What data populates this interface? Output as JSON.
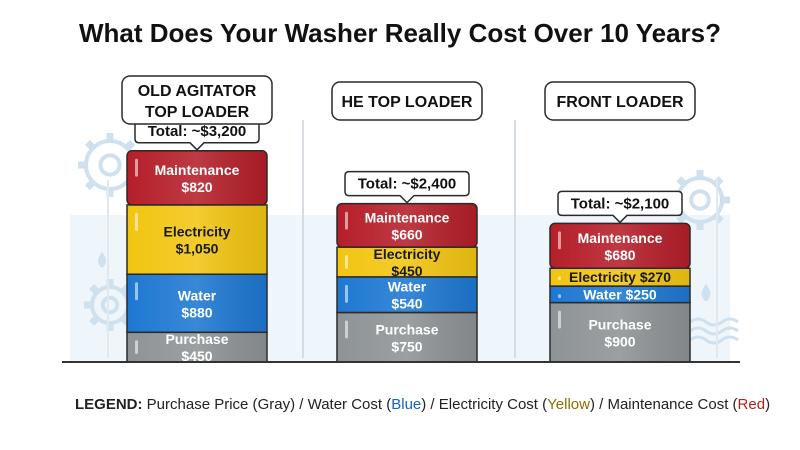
{
  "title": "What Does Your Washer Really Cost Over 10 Years?",
  "legend": {
    "label": "LEGEND:",
    "entries": [
      {
        "text": "Purchase Price (Gray)",
        "name": "Purchase Price",
        "paren": "Gray",
        "color": "#8e9396"
      },
      {
        "text": "Water Cost (Blue)",
        "name": "Water Cost",
        "paren": "Blue",
        "color": "#1e78d2"
      },
      {
        "text": "Electricity Cost (Yellow)",
        "name": "Electricity Cost",
        "paren": "Yellow",
        "color": "#f2c512"
      },
      {
        "text": "Maintenance Cost (Red)",
        "name": "Maintenance Cost",
        "paren": "Red",
        "color": "#b51f2a"
      }
    ],
    "separator": " / "
  },
  "chart_data": {
    "type": "bar",
    "stacked": true,
    "title": "What Does Your Washer Really Cost Over 10 Years?",
    "categories": [
      "OLD AGITATOR TOP LOADER",
      "HE TOP LOADER",
      "FRONT LOADER"
    ],
    "category_lines": [
      [
        "OLD AGITATOR",
        "TOP LOADER"
      ],
      [
        "HE TOP LOADER"
      ],
      [
        "FRONT LOADER"
      ]
    ],
    "totals": [
      "Total: ~$3,200",
      "Total: ~$2,400",
      "Total: ~$2,100"
    ],
    "series": [
      {
        "name": "Purchase",
        "color": "#8e9396",
        "values": [
          450,
          750,
          900
        ],
        "labels": [
          "$450",
          "$750",
          "$900"
        ],
        "label_style": [
          "stack",
          "stack",
          "stack"
        ]
      },
      {
        "name": "Water",
        "color": "#1e78d2",
        "values": [
          880,
          540,
          250
        ],
        "labels": [
          "$880",
          "$540",
          "$250"
        ],
        "label_style": [
          "stack",
          "stack",
          "inline"
        ]
      },
      {
        "name": "Electricity",
        "color": "#f2c512",
        "values": [
          1050,
          450,
          270
        ],
        "labels": [
          "$1,050",
          "$450",
          "$270"
        ],
        "label_style": [
          "stack",
          "stack",
          "inline"
        ]
      },
      {
        "name": "Maintenance",
        "color": "#b51f2a",
        "values": [
          820,
          660,
          680
        ],
        "labels": [
          "$820",
          "$660",
          "$680"
        ],
        "label_style": [
          "stack",
          "stack",
          "stack"
        ]
      }
    ],
    "ylim": [
      0,
      3200
    ],
    "grid": false,
    "legend_position": "bottom"
  }
}
